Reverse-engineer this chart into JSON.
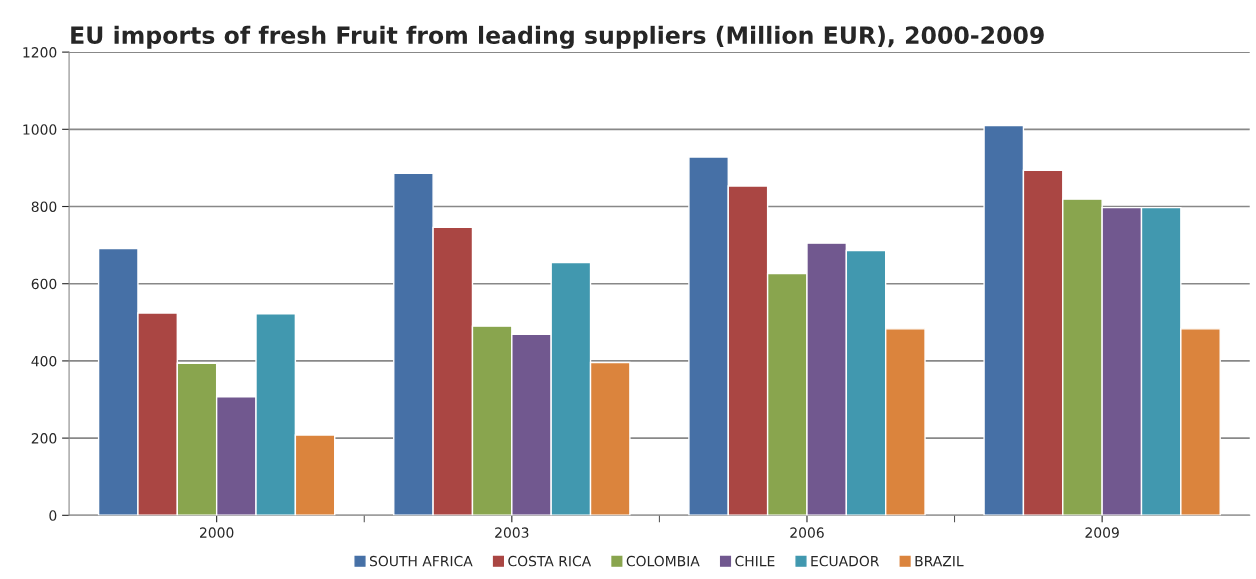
{
  "chart_data": {
    "type": "bar",
    "title": "EU imports of fresh Fruit from leading suppliers (Million EUR), 2000-2009",
    "categories": [
      "2000",
      "2003",
      "2006",
      "2009"
    ],
    "series": [
      {
        "name": "SOUTH AFRICA",
        "color": "#4670a6",
        "values": [
          691,
          886,
          928,
          1010
        ]
      },
      {
        "name": "COSTA RICA",
        "color": "#aa4643",
        "values": [
          524,
          746,
          853,
          894
        ]
      },
      {
        "name": "COLOMBIA",
        "color": "#89a54e",
        "values": [
          394,
          490,
          626,
          819
        ]
      },
      {
        "name": "CHILE",
        "color": "#71588f",
        "values": [
          307,
          469,
          705,
          797
        ]
      },
      {
        "name": "ECUADOR",
        "color": "#4198af",
        "values": [
          522,
          655,
          686,
          797
        ]
      },
      {
        "name": "BRAZIL",
        "color": "#db843d",
        "values": [
          208,
          396,
          483,
          483
        ]
      }
    ],
    "ylim": [
      0,
      1200
    ],
    "yticks": [
      0,
      200,
      400,
      600,
      800,
      1000,
      1200
    ],
    "grid": "y",
    "legend": "bottom"
  }
}
